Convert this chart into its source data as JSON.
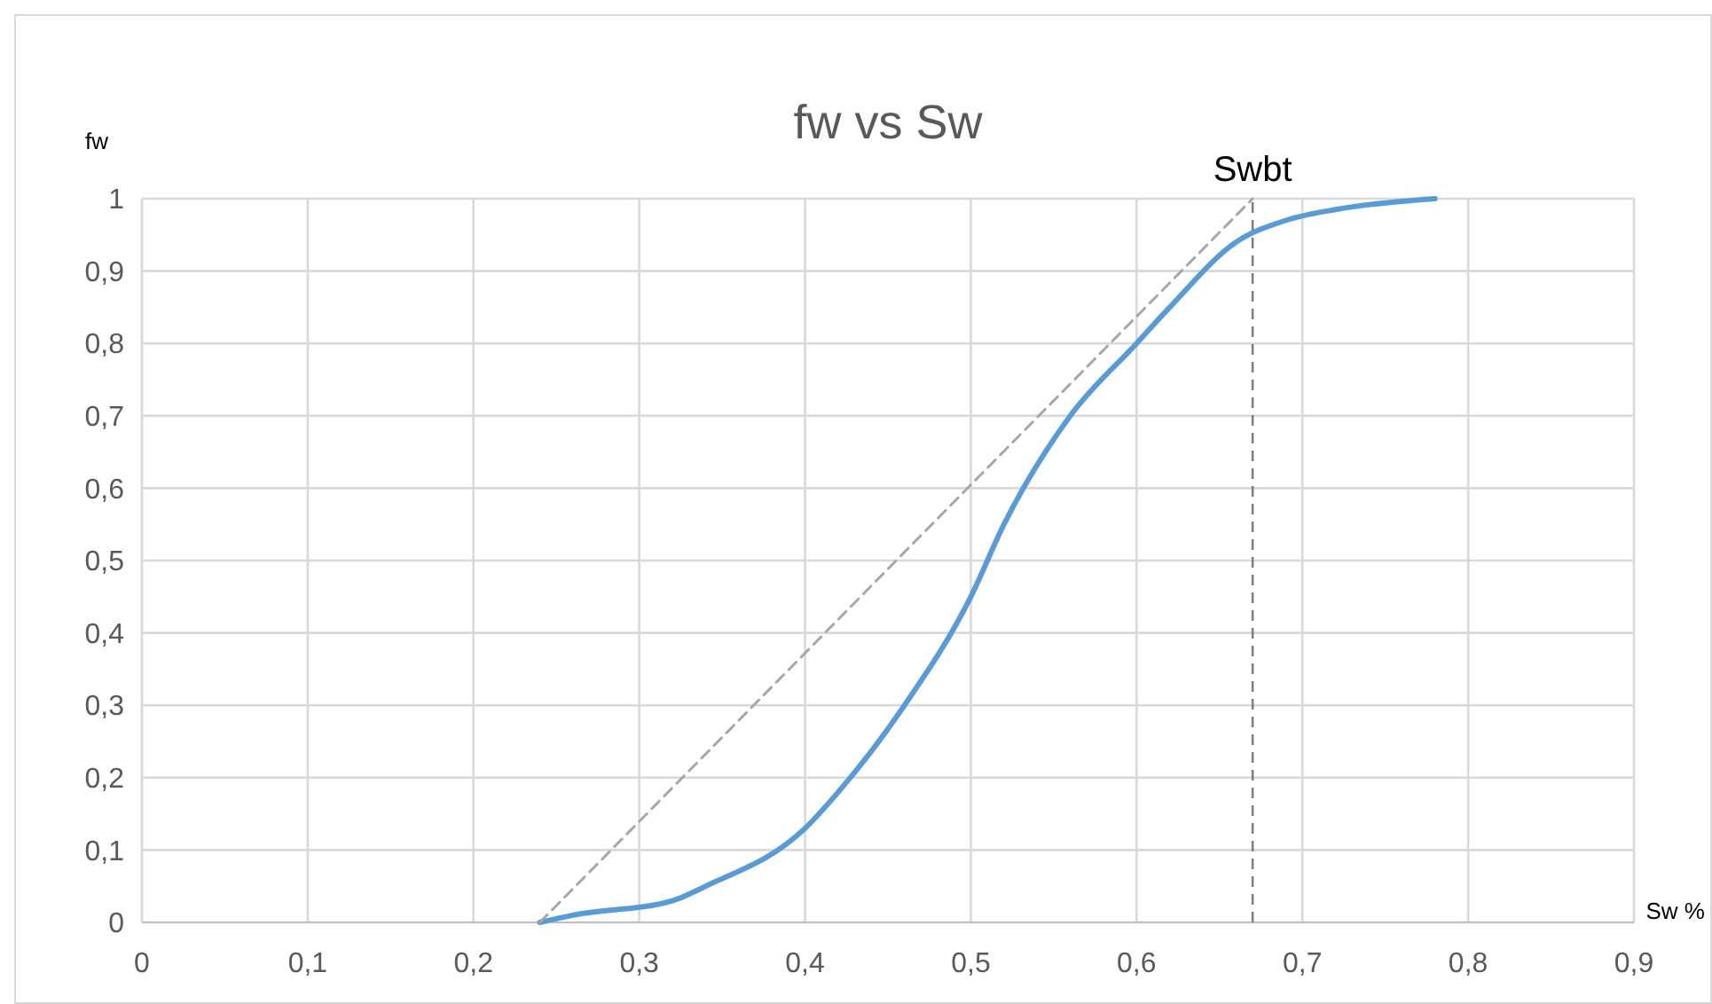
{
  "chart_data": {
    "type": "line",
    "title": "fw vs Sw",
    "xlabel": "Sw %",
    "ylabel": "fw",
    "grid": true,
    "xlim": [
      0,
      0.9
    ],
    "ylim": [
      0,
      1
    ],
    "xticks": [
      0,
      {
        "value": 0.1,
        "label": "0,1"
      },
      {
        "value": 0.2,
        "label": "0,2"
      },
      {
        "value": 0.3,
        "label": "0,3"
      },
      {
        "value": 0.4,
        "label": "0,4"
      },
      {
        "value": 0.5,
        "label": "0,5"
      },
      {
        "value": 0.6,
        "label": "0,6"
      },
      {
        "value": 0.7,
        "label": "0,7"
      },
      {
        "value": 0.8,
        "label": "0,8"
      },
      {
        "value": 0.9,
        "label": "0,9"
      }
    ],
    "yticks": [
      0,
      {
        "value": 0.1,
        "label": "0,1"
      },
      {
        "value": 0.2,
        "label": "0,2"
      },
      {
        "value": 0.3,
        "label": "0,3"
      },
      {
        "value": 0.4,
        "label": "0,4"
      },
      {
        "value": 0.5,
        "label": "0,5"
      },
      {
        "value": 0.6,
        "label": "0,6"
      },
      {
        "value": 0.7,
        "label": "0,7"
      },
      {
        "value": 0.8,
        "label": "0,8"
      },
      {
        "value": 0.9,
        "label": "0,9"
      },
      1
    ],
    "series": [
      {
        "color": "#5b9bd5",
        "line_style": "solid",
        "x": [
          0.24,
          0.26,
          0.32,
          0.34,
          0.4,
          0.42,
          0.46,
          0.5,
          0.52,
          0.56,
          0.6,
          0.62,
          0.66,
          0.69,
          0.72,
          0.78
        ],
        "values": [
          0,
          0.01,
          0.03,
          0.05,
          0.13,
          0.18,
          0.3,
          0.45,
          0.55,
          0.7,
          0.8,
          0.85,
          0.94,
          0.97,
          0.985,
          1
        ]
      },
      {
        "color": "#a6a6a6",
        "line_style": "dashed",
        "x": [
          0.24,
          0.67
        ],
        "values": [
          0,
          1
        ]
      }
    ],
    "ref_lines": [
      {
        "axis": "x",
        "value": 0.67,
        "label": "Swbt",
        "color": "#7f7f7f",
        "line_style": "dashed"
      }
    ]
  }
}
